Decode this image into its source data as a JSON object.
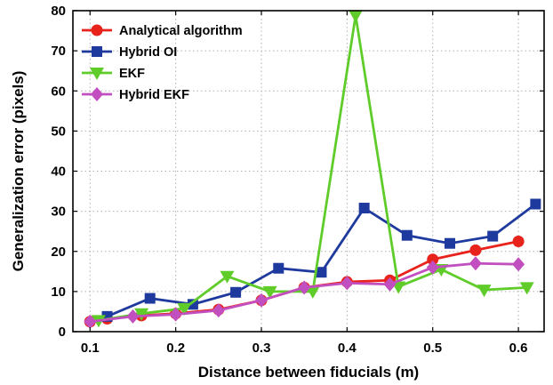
{
  "chart_data": {
    "type": "line",
    "title": "",
    "xlabel": "Distance between fiducials (m)",
    "ylabel": "Generalization error (pixels)",
    "xlim": [
      0.08,
      0.63
    ],
    "ylim": [
      0,
      80
    ],
    "xticks": [
      0.1,
      0.2,
      0.3,
      0.4,
      0.5,
      0.6
    ],
    "xtick_labels": [
      "0.1",
      "0.2",
      "0.3",
      "0.4",
      "0.5",
      "0.6"
    ],
    "yticks": [
      0,
      10,
      20,
      30,
      40,
      50,
      60,
      70,
      80
    ],
    "ytick_labels": [
      "0",
      "10",
      "20",
      "30",
      "40",
      "50",
      "60",
      "70",
      "80"
    ],
    "grid": true,
    "legend_position": "top-left",
    "series": [
      {
        "name": "Analytical algorithm",
        "color": "#e8231b",
        "marker": "circle",
        "x": [
          0.1,
          0.12,
          0.16,
          0.2,
          0.25,
          0.3,
          0.35,
          0.4,
          0.45,
          0.5,
          0.55,
          0.6
        ],
        "y": [
          2.5,
          3.2,
          4.0,
          4.5,
          5.5,
          7.8,
          11.0,
          12.4,
          12.8,
          18.0,
          20.3,
          22.5
        ]
      },
      {
        "name": "Hybrid OI",
        "color": "#1f3a9e",
        "marker": "square",
        "x": [
          0.12,
          0.17,
          0.22,
          0.27,
          0.32,
          0.37,
          0.42,
          0.47,
          0.52,
          0.57,
          0.62
        ],
        "y": [
          3.8,
          8.3,
          6.8,
          9.8,
          15.8,
          14.8,
          30.8,
          24.0,
          22.0,
          23.8,
          31.8
        ]
      },
      {
        "name": "EKF",
        "color": "#5fcc2a",
        "marker": "triangle-down",
        "x": [
          0.11,
          0.16,
          0.21,
          0.26,
          0.31,
          0.36,
          0.41,
          0.46,
          0.51,
          0.56,
          0.61
        ],
        "y": [
          2.8,
          4.5,
          5.8,
          13.8,
          10.0,
          10.0,
          78.8,
          11.2,
          15.5,
          10.4,
          11.0
        ]
      },
      {
        "name": "Hybrid EKF",
        "color": "#c24fc0",
        "marker": "diamond",
        "x": [
          0.1,
          0.15,
          0.2,
          0.25,
          0.3,
          0.35,
          0.4,
          0.45,
          0.5,
          0.55,
          0.6
        ],
        "y": [
          2.5,
          3.8,
          4.3,
          5.3,
          7.8,
          11.0,
          12.1,
          11.8,
          16.0,
          17.0,
          16.8
        ]
      }
    ]
  }
}
